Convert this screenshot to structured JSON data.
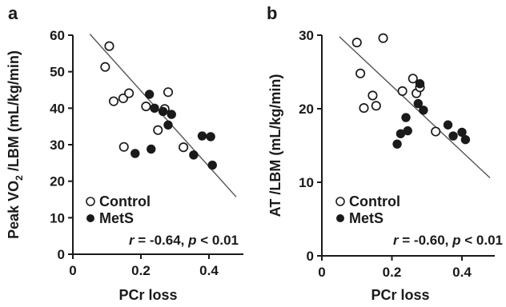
{
  "chart_data": [
    {
      "type": "scatter",
      "panel_label": "a",
      "ylabel_main": "Peak VO",
      "ylabel_sub": "2",
      "ylabel_rest": " /LBM (mL/kg/min)",
      "xlabel": "PCr loss",
      "xlim": [
        0,
        0.5
      ],
      "ylim": [
        0,
        60
      ],
      "xticks": [
        "0",
        "0.2",
        "0.4"
      ],
      "yticks": [
        "0",
        "10",
        "20",
        "30",
        "40",
        "50",
        "60"
      ],
      "legend": [
        "Control",
        "MetS"
      ],
      "stat_r": "r",
      "stat_r_val": " = -0.64, ",
      "stat_p": "p",
      "stat_p_val": " < 0.01",
      "regression": {
        "x": [
          0.05,
          0.48
        ],
        "y": [
          60.3,
          15.7
        ]
      },
      "series": [
        {
          "name": "Control",
          "marker": "open",
          "points": [
            [
              0.095,
              51.3
            ],
            [
              0.107,
              57.0
            ],
            [
              0.12,
              41.9
            ],
            [
              0.148,
              42.7
            ],
            [
              0.165,
              44.1
            ],
            [
              0.15,
              29.4
            ],
            [
              0.215,
              40.5
            ],
            [
              0.25,
              34.0
            ],
            [
              0.27,
              39.8
            ],
            [
              0.28,
              44.4
            ],
            [
              0.325,
              29.3
            ]
          ]
        },
        {
          "name": "MetS",
          "marker": "filled",
          "points": [
            [
              0.183,
              27.6
            ],
            [
              0.225,
              43.8
            ],
            [
              0.24,
              40.0
            ],
            [
              0.23,
              28.8
            ],
            [
              0.265,
              39.1
            ],
            [
              0.28,
              35.4
            ],
            [
              0.29,
              38.3
            ],
            [
              0.355,
              27.2
            ],
            [
              0.38,
              32.4
            ],
            [
              0.405,
              32.2
            ],
            [
              0.41,
              24.4
            ]
          ]
        }
      ]
    },
    {
      "type": "scatter",
      "panel_label": "b",
      "ylabel": "AT /LBM (mL/kg/min)",
      "xlabel": "PCr loss",
      "xlim": [
        0,
        0.5
      ],
      "ylim": [
        0,
        30
      ],
      "xticks": [
        "0",
        "0.2",
        "0.4"
      ],
      "yticks": [
        "0",
        "10",
        "20",
        "30"
      ],
      "legend": [
        "Control",
        "MetS"
      ],
      "stat_r": "r",
      "stat_r_val": " = -0.60, ",
      "stat_p": "p",
      "stat_p_val": " < 0.01",
      "regression": {
        "x": [
          0.05,
          0.48
        ],
        "y": [
          29.8,
          10.6
        ]
      },
      "series": [
        {
          "name": "Control",
          "marker": "open",
          "points": [
            [
              0.1,
              29.0
            ],
            [
              0.11,
              24.8
            ],
            [
              0.12,
              20.1
            ],
            [
              0.145,
              21.8
            ],
            [
              0.155,
              20.4
            ],
            [
              0.175,
              29.6
            ],
            [
              0.23,
              22.4
            ],
            [
              0.26,
              24.1
            ],
            [
              0.27,
              22.1
            ],
            [
              0.28,
              22.9
            ],
            [
              0.325,
              16.9
            ]
          ]
        },
        {
          "name": "MetS",
          "marker": "filled",
          "points": [
            [
              0.215,
              15.2
            ],
            [
              0.225,
              16.6
            ],
            [
              0.24,
              18.8
            ],
            [
              0.245,
              17.0
            ],
            [
              0.275,
              20.7
            ],
            [
              0.28,
              23.4
            ],
            [
              0.29,
              19.8
            ],
            [
              0.36,
              17.8
            ],
            [
              0.375,
              16.3
            ],
            [
              0.4,
              16.8
            ],
            [
              0.41,
              15.8
            ]
          ]
        }
      ]
    }
  ]
}
